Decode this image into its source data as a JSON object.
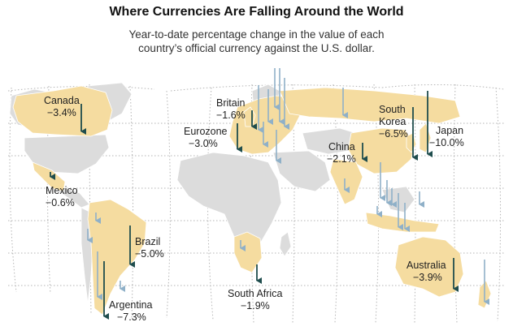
{
  "header": {
    "title": "Where Currencies Are Falling Around the World",
    "subtitle_line1": "Year-to-date percentage change in the value of each",
    "subtitle_line2": "country’s official currency against the U.S. dollar."
  },
  "colors": {
    "highlight_land": "#f5dca0",
    "other_land": "#dcdcdc",
    "labeled_arrow": "#1f4d4d",
    "other_arrow": "#8fb0c8",
    "graticule": "#b4b4b4"
  },
  "labeled_countries": [
    {
      "id": "canada",
      "name": "Canada",
      "change": "−3.4%"
    },
    {
      "id": "mexico",
      "name": "Mexico",
      "change": "−0.6%"
    },
    {
      "id": "brazil",
      "name": "Brazil",
      "change": "−5.0%"
    },
    {
      "id": "argentina",
      "name": "Argentina",
      "change": "−7.3%"
    },
    {
      "id": "britain",
      "name": "Britain",
      "change": "−1.6%"
    },
    {
      "id": "eurozone",
      "name": "Eurozone",
      "change": "−3.0%"
    },
    {
      "id": "china",
      "name": "China",
      "change": "−2.1%"
    },
    {
      "id": "south-korea",
      "name_line1": "South",
      "name_line2": "Korea",
      "change": "−6.5%"
    },
    {
      "id": "japan",
      "name": "Japan",
      "change": "−10.0%"
    },
    {
      "id": "south-africa",
      "name": "South Africa",
      "change": "−1.9%"
    },
    {
      "id": "australia",
      "name": "Australia",
      "change": "−3.9%"
    }
  ]
}
